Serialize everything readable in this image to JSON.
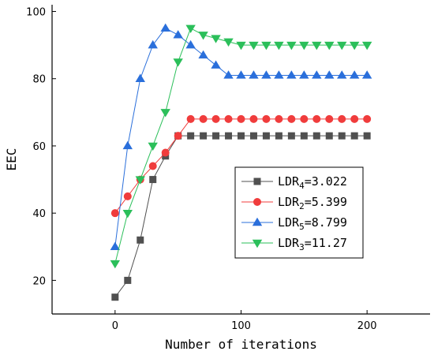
{
  "chart_data": {
    "type": "line",
    "xlabel": "Number of iterations",
    "ylabel": "EEC",
    "xlim": [
      -50,
      250
    ],
    "ylim": [
      10,
      102
    ],
    "xticks": [
      0,
      100,
      200
    ],
    "xtick_labels": [
      "0",
      "100",
      "200"
    ],
    "yticks": [
      20,
      40,
      60,
      80,
      100
    ],
    "ytick_labels": [
      "20",
      "40",
      "60",
      "80",
      "100"
    ],
    "grid": false,
    "legend_position": "center-right",
    "x": [
      0,
      10,
      20,
      30,
      40,
      50,
      60,
      70,
      80,
      90,
      100,
      110,
      120,
      130,
      140,
      150,
      160,
      170,
      180,
      190,
      200
    ],
    "series": [
      {
        "name": "LDR4=3.022",
        "legend_base": "LDR",
        "legend_sub": "4",
        "legend_value": "=3.022",
        "color": "#505050",
        "marker": "square",
        "values": [
          15,
          20,
          32,
          50,
          57,
          63,
          63,
          63,
          63,
          63,
          63,
          63,
          63,
          63,
          63,
          63,
          63,
          63,
          63,
          63,
          63
        ]
      },
      {
        "name": "LDR2=5.399",
        "legend_base": "LDR",
        "legend_sub": "2",
        "legend_value": "=5.399",
        "color": "#f03c3c",
        "marker": "circle",
        "values": [
          40,
          45,
          50,
          54,
          58,
          63,
          68,
          68,
          68,
          68,
          68,
          68,
          68,
          68,
          68,
          68,
          68,
          68,
          68,
          68,
          68
        ]
      },
      {
        "name": "LDR5=8.799",
        "legend_base": "LDR",
        "legend_sub": "5",
        "legend_value": "=8.799",
        "color": "#2a6fdb",
        "marker": "triangle-up",
        "values": [
          30,
          60,
          80,
          90,
          95,
          93,
          90,
          87,
          84,
          81,
          81,
          81,
          81,
          81,
          81,
          81,
          81,
          81,
          81,
          81,
          81
        ]
      },
      {
        "name": "LDR3=11.27",
        "legend_base": "LDR",
        "legend_sub": "3",
        "legend_value": "=11.27",
        "color": "#2bbf5a",
        "marker": "triangle-down",
        "values": [
          25,
          40,
          50,
          60,
          70,
          85,
          95,
          93,
          92,
          91,
          90,
          90,
          90,
          90,
          90,
          90,
          90,
          90,
          90,
          90,
          90
        ]
      }
    ]
  }
}
